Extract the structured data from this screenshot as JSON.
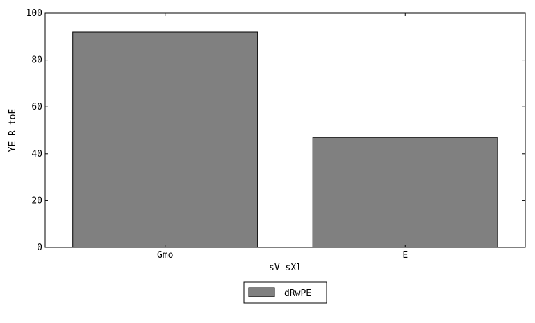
{
  "chart_data": {
    "type": "bar",
    "categories": [
      "Gmo",
      "E"
    ],
    "series": [
      {
        "name": "dRwPE",
        "values": [
          92,
          47
        ],
        "color": "#808080"
      }
    ],
    "xlabel": "sV sXl",
    "ylabel": "YE R toE",
    "ylim": [
      0,
      100
    ],
    "yticks": [
      0,
      20,
      40,
      60,
      80,
      100
    ],
    "grid": false,
    "legend": {
      "placement": "bottom-center"
    }
  }
}
